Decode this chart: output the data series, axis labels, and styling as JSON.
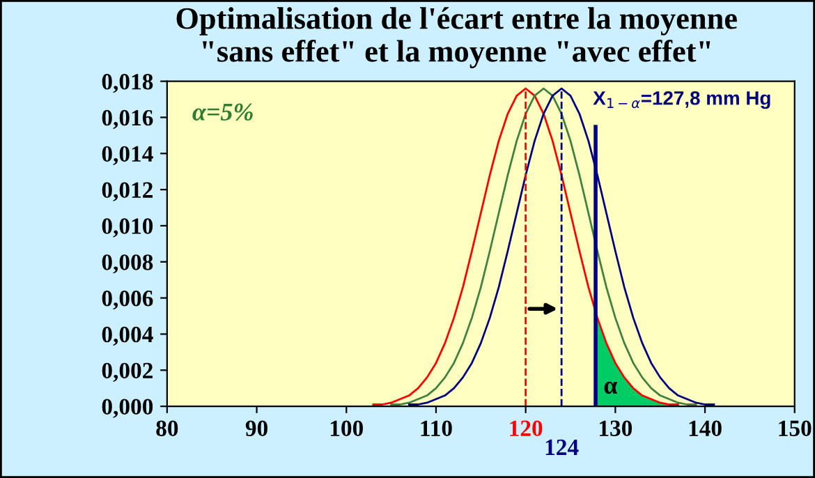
{
  "chart_data": {
    "type": "line",
    "title": "Optimalisation de l'écart entre la moyenne\n\"sans effet\" et la moyenne \"avec effet\"",
    "series": [
      {
        "color": "#ff0000",
        "x": [
          103,
          104,
          105,
          106,
          107,
          108,
          109,
          110,
          111,
          112,
          113,
          114,
          115,
          116,
          117,
          118,
          119,
          120,
          121,
          122,
          123,
          124,
          125,
          126,
          127,
          128,
          129,
          130,
          131,
          132,
          133,
          134,
          135,
          136,
          137
        ],
        "values": [
          0.0001,
          0.0001,
          0.0002,
          0.0004,
          0.0006,
          0.001,
          0.0016,
          0.0024,
          0.0035,
          0.0049,
          0.0066,
          0.0086,
          0.0107,
          0.0128,
          0.0147,
          0.0162,
          0.0172,
          0.0176,
          0.0172,
          0.0162,
          0.0147,
          0.0128,
          0.0107,
          0.0086,
          0.0066,
          0.0049,
          0.0035,
          0.0024,
          0.0016,
          0.001,
          0.0006,
          0.0004,
          0.0002,
          0.0001,
          0.0001
        ]
      },
      {
        "color": "#408040",
        "x": [
          105,
          106,
          107,
          108,
          109,
          110,
          111,
          112,
          113,
          114,
          115,
          116,
          117,
          118,
          119,
          120,
          121,
          122,
          123,
          124,
          125,
          126,
          127,
          128,
          129,
          130,
          131,
          132,
          133,
          134,
          135,
          136,
          137,
          138,
          139
        ],
        "values": [
          0.0001,
          0.0001,
          0.0002,
          0.0004,
          0.0006,
          0.001,
          0.0016,
          0.0024,
          0.0035,
          0.0049,
          0.0066,
          0.0086,
          0.0107,
          0.0128,
          0.0147,
          0.0162,
          0.0172,
          0.0176,
          0.0172,
          0.0162,
          0.0147,
          0.0128,
          0.0107,
          0.0086,
          0.0066,
          0.0049,
          0.0035,
          0.0024,
          0.0016,
          0.001,
          0.0006,
          0.0004,
          0.0002,
          0.0001,
          0.0001
        ]
      },
      {
        "color": "#000080",
        "x": [
          107,
          108,
          109,
          110,
          111,
          112,
          113,
          114,
          115,
          116,
          117,
          118,
          119,
          120,
          121,
          122,
          123,
          124,
          125,
          126,
          127,
          128,
          129,
          130,
          131,
          132,
          133,
          134,
          135,
          136,
          137,
          138,
          139,
          140,
          141
        ],
        "values": [
          0.0001,
          0.0001,
          0.0002,
          0.0004,
          0.0006,
          0.001,
          0.0016,
          0.0024,
          0.0035,
          0.0049,
          0.0066,
          0.0086,
          0.0107,
          0.0128,
          0.0147,
          0.0162,
          0.0172,
          0.0176,
          0.0172,
          0.0162,
          0.0147,
          0.0128,
          0.0107,
          0.0086,
          0.0066,
          0.0049,
          0.0035,
          0.0024,
          0.0016,
          0.001,
          0.0006,
          0.0004,
          0.0002,
          0.0001,
          0.0001
        ]
      },
      {
        "type": "area",
        "color": "#00cc66",
        "x": [
          127.8,
          128,
          129,
          130,
          131,
          132,
          133,
          134,
          135,
          136,
          137
        ],
        "values": [
          0.0052,
          0.0049,
          0.0035,
          0.0024,
          0.0016,
          0.001,
          0.0006,
          0.0004,
          0.0002,
          0.0001,
          0.0001
        ]
      }
    ],
    "xlim": [
      80,
      150
    ],
    "ylim": [
      0,
      0.018
    ],
    "xticks": [
      80,
      90,
      100,
      110,
      120,
      130,
      140,
      150
    ],
    "yticks": [
      {
        "value": 0,
        "label": "0,000"
      },
      {
        "value": 0.002,
        "label": "0,002"
      },
      {
        "value": 0.004,
        "label": "0,004"
      },
      {
        "value": 0.006,
        "label": "0,006"
      },
      {
        "value": 0.008,
        "label": "0,008"
      },
      {
        "value": 0.01,
        "label": "0,010"
      },
      {
        "value": 0.012,
        "label": "0,012"
      },
      {
        "value": 0.014,
        "label": "0,014"
      },
      {
        "value": 0.016,
        "label": "0,016"
      },
      {
        "value": 0.018,
        "label": "0,018"
      }
    ],
    "ref_lines": [
      {
        "axis": "x",
        "value": 120,
        "color": "#ff0000",
        "line_style": "dashed"
      },
      {
        "axis": "x",
        "value": 124,
        "color": "#000080",
        "line_style": "dashed",
        "label": "124"
      },
      {
        "axis": "x",
        "value": 127.8,
        "color": "#000080",
        "line_style": "solid",
        "label": "X$_{1−α}$=127,8 mm Hg"
      }
    ],
    "annotations": [
      "α=5%",
      "α"
    ],
    "grid": false,
    "legend": false
  }
}
